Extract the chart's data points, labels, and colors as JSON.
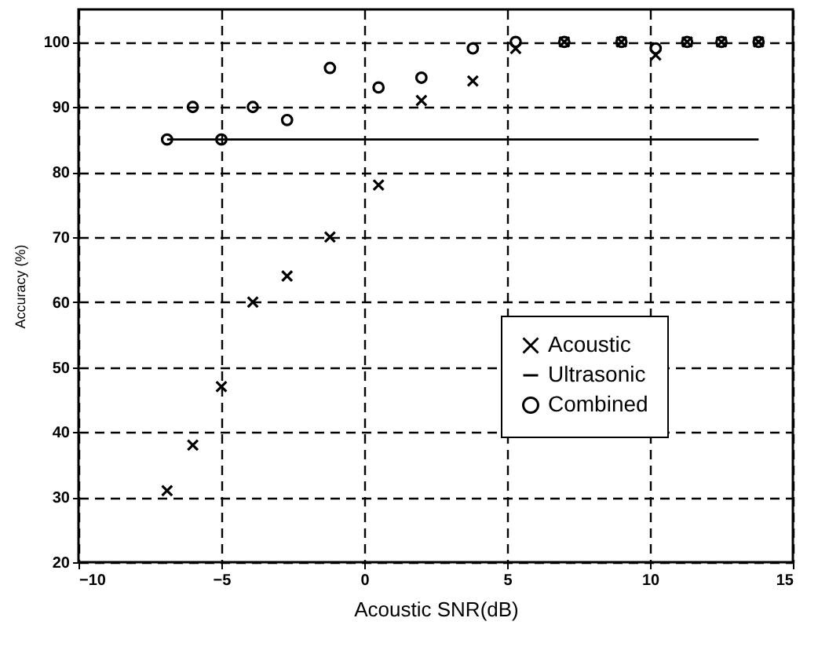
{
  "chart_data": {
    "type": "scatter",
    "xlabel": "Acoustic SNR(dB)",
    "ylabel": "Accuracy (%)",
    "xlim": [
      -10,
      15
    ],
    "xticks": [
      -10,
      -5,
      0,
      5,
      10,
      15
    ],
    "ylim": [
      20,
      105
    ],
    "yticks": [
      20,
      30,
      40,
      50,
      60,
      70,
      80,
      90,
      100
    ],
    "grid": true,
    "legend": "bottom right",
    "series": [
      {
        "name": "Acoustic",
        "color": "#000000",
        "marker": "cross",
        "x": [
          -6.9,
          -6.0,
          -5.0,
          -3.9,
          -2.7,
          -1.2,
          0.5,
          2.0,
          3.8,
          5.3,
          7.0,
          9.0,
          10.2,
          11.3,
          12.5,
          13.8
        ],
        "values": [
          31,
          38,
          47,
          60,
          64,
          70,
          78,
          91,
          94,
          99,
          100,
          100,
          98,
          100,
          100,
          100
        ]
      },
      {
        "name": "Ultrasonic",
        "color": "#000000",
        "type": "line",
        "marker": "none",
        "line_style": "solid",
        "x": [
          -6.9,
          13.8
        ],
        "values": [
          85,
          85
        ]
      },
      {
        "name": "Combined",
        "color": "#000000",
        "marker": "circle",
        "x": [
          -6.9,
          -6.0,
          -5.0,
          -3.9,
          -2.7,
          -1.2,
          0.5,
          2.0,
          3.8,
          5.3,
          7.0,
          9.0,
          10.2,
          11.3,
          12.5,
          13.8
        ],
        "values": [
          85,
          90,
          85,
          90,
          88,
          96,
          93,
          94.5,
          99,
          100,
          100,
          100,
          99,
          100,
          100,
          100
        ]
      }
    ]
  }
}
